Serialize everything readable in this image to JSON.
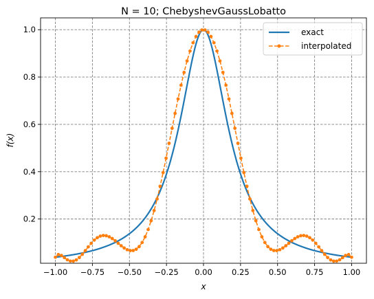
{
  "chart_data": {
    "type": "line",
    "title": "N = 10; ChebyshevGaussLobatto",
    "xlabel": "x",
    "ylabel": "f(x)",
    "xlim": [
      -1.1,
      1.1
    ],
    "ylim": [
      0.013,
      1.05
    ],
    "xticks": [
      -1.0,
      -0.75,
      -0.5,
      -0.25,
      0.0,
      0.25,
      0.5,
      0.75,
      1.0
    ],
    "xtick_labels": [
      "−1.00",
      "−0.75",
      "−0.50",
      "−0.25",
      "0.00",
      "0.25",
      "0.50",
      "0.75",
      "1.00"
    ],
    "yticks": [
      0.2,
      0.4,
      0.6,
      0.8,
      1.0
    ],
    "ytick_labels": [
      "0.2",
      "0.4",
      "0.6",
      "0.8",
      "1.0"
    ],
    "grid": true,
    "legend_position": "top-right",
    "series": [
      {
        "name": "exact",
        "color": "#1f77b4",
        "style": "solid",
        "function": "runge",
        "x_range": [
          -1.0,
          1.0
        ]
      },
      {
        "name": "interpolated",
        "color": "#ff7f0e",
        "style": "dashed",
        "marker": "circle",
        "function": "chebyshev-lobatto-interpolant",
        "num_points": 100,
        "x_range": [
          -1.0,
          1.0
        ]
      }
    ]
  }
}
